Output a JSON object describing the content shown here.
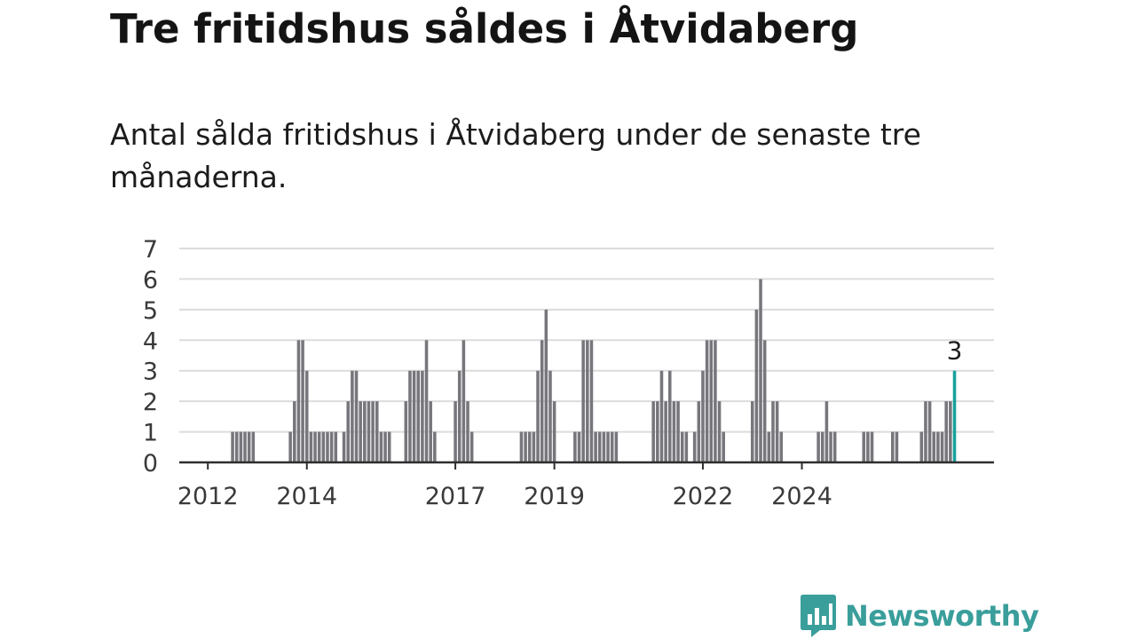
{
  "title": "Tre fritidshus såldes i Åtvidaberg",
  "subtitle": "Antal sålda fritidshus i Åtvidaberg under de senaste tre månaderna.",
  "brand": {
    "name": "Newsworthy",
    "icon": "newsworthy-logo-icon",
    "color": "#3a9e9b"
  },
  "colors": {
    "bar": "#77767c",
    "highlight": "#16a19b",
    "grid": "#dcdcdc",
    "axis": "#2e2e2e",
    "text": "#3a3a3a"
  },
  "chart_data": {
    "type": "bar",
    "title": "Tre fritidshus såldes i Åtvidaberg",
    "subtitle": "Antal sålda fritidshus i Åtvidaberg under de senaste tre månaderna.",
    "xlabel": "",
    "ylabel": "",
    "ylim": [
      0,
      7
    ],
    "yticks": [
      0,
      1,
      2,
      3,
      4,
      5,
      6,
      7
    ],
    "grid": true,
    "x_start": "2011-07",
    "x_frequency": "monthly",
    "x_tick_labels": [
      {
        "label": "2012",
        "x": "2012-01"
      },
      {
        "label": "2014",
        "x": "2014-01"
      },
      {
        "label": "2017",
        "x": "2017-01"
      },
      {
        "label": "2019",
        "x": "2019-01"
      },
      {
        "label": "2022",
        "x": "2022-01"
      },
      {
        "label": "2024",
        "x": "2024-01"
      }
    ],
    "values": [
      0,
      0,
      0,
      0,
      0,
      0,
      0,
      0,
      0,
      0,
      0,
      0,
      1,
      1,
      1,
      1,
      1,
      1,
      0,
      0,
      0,
      0,
      0,
      0,
      0,
      0,
      1,
      2,
      4,
      4,
      3,
      1,
      1,
      1,
      1,
      1,
      1,
      1,
      0,
      1,
      2,
      3,
      3,
      2,
      2,
      2,
      2,
      2,
      1,
      1,
      1,
      0,
      0,
      0,
      2,
      3,
      3,
      3,
      3,
      4,
      2,
      1,
      0,
      0,
      0,
      0,
      2,
      3,
      4,
      2,
      1,
      0,
      0,
      0,
      0,
      0,
      0,
      0,
      0,
      0,
      0,
      0,
      1,
      1,
      1,
      1,
      3,
      4,
      5,
      3,
      2,
      0,
      0,
      0,
      0,
      1,
      1,
      4,
      4,
      4,
      1,
      1,
      1,
      1,
      1,
      1,
      0,
      0,
      0,
      0,
      0,
      0,
      0,
      0,
      2,
      2,
      3,
      2,
      3,
      2,
      2,
      1,
      1,
      0,
      1,
      2,
      3,
      4,
      4,
      4,
      2,
      1,
      0,
      0,
      0,
      0,
      0,
      0,
      2,
      5,
      6,
      4,
      1,
      2,
      2,
      1,
      0,
      0,
      0,
      0,
      0,
      0,
      0,
      0,
      1,
      1,
      2,
      1,
      1,
      0,
      0,
      0,
      0,
      0,
      0,
      1,
      1,
      1,
      0,
      0,
      0,
      0,
      1,
      1,
      0,
      0,
      0,
      0,
      0,
      1,
      2,
      2,
      1,
      1,
      1,
      2,
      2,
      3
    ],
    "highlight": {
      "label": "3",
      "value": 3,
      "position": "last"
    }
  }
}
